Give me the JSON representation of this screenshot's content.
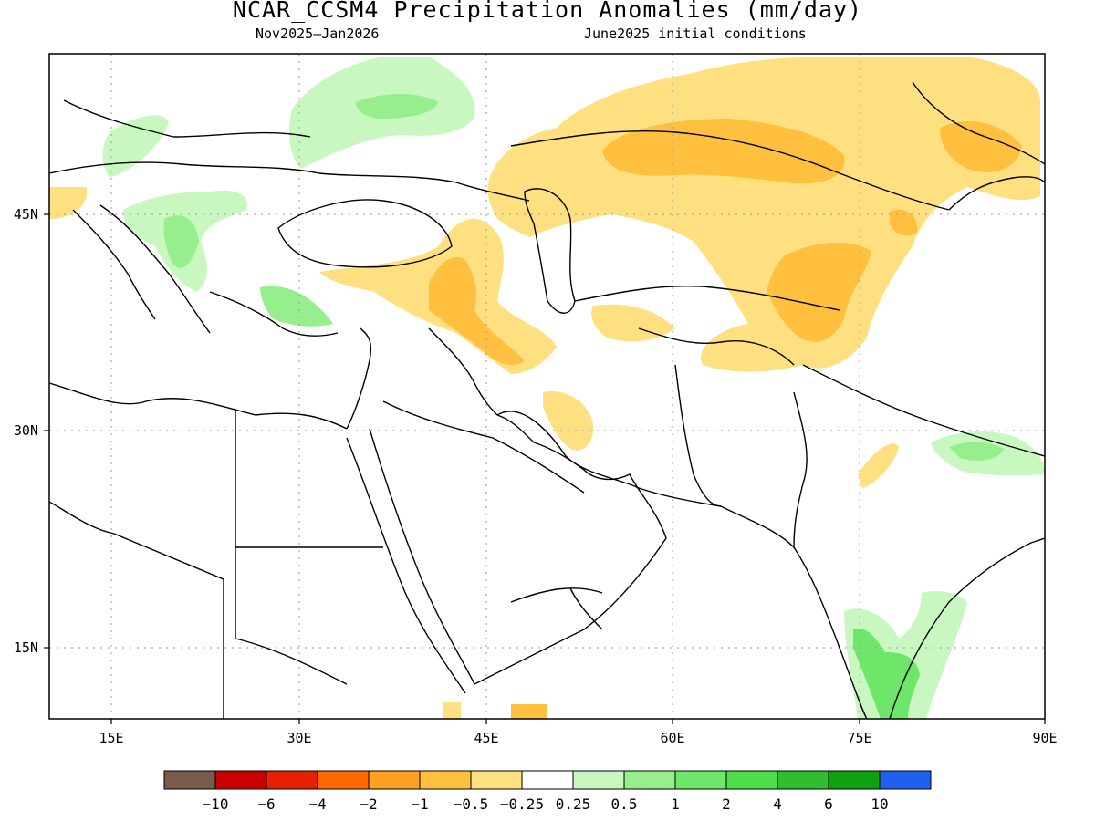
{
  "title": "NCAR_CCSM4 Precipitation Anomalies (mm/day)",
  "period": "Nov2025–Jan2026",
  "initial_conditions": "June2025 initial conditions",
  "axes": {
    "x_ticks": [
      "15E",
      "30E",
      "45E",
      "60E",
      "75E",
      "90E"
    ],
    "y_ticks": [
      "45N",
      "30N",
      "15N"
    ]
  },
  "colorbar": {
    "colors": [
      "#7a5a4a",
      "#c80000",
      "#e62000",
      "#ff6a00",
      "#ffa020",
      "#ffc040",
      "#ffe080",
      "#ffffff",
      "#c8f8c0",
      "#96ee8c",
      "#6ee66a",
      "#4ede4a",
      "#30be30",
      "#10a010",
      "#2060f0"
    ],
    "labels": [
      "−10",
      "−6",
      "−4",
      "−2",
      "−1",
      "−0.5",
      "−0.25",
      "0.25",
      "0.5",
      "1",
      "2",
      "4",
      "6",
      "10"
    ]
  },
  "map_data": {
    "lon_range": [
      10,
      90
    ],
    "lat_range": [
      9,
      56
    ],
    "anomaly_regions": [
      {
        "name": "central-asia-dry",
        "value": -0.5,
        "color": "#ffe080"
      },
      {
        "name": "kazakhstan-dry-core",
        "value": -1,
        "color": "#ffc040"
      },
      {
        "name": "caucasus-iran-dry",
        "value": -1,
        "color": "#ffc040"
      },
      {
        "name": "tien-shan-dry",
        "value": -1,
        "color": "#ffc040"
      },
      {
        "name": "ukraine-wet",
        "value": 0.5,
        "color": "#96ee8c"
      },
      {
        "name": "balkans-wet",
        "value": 0.5,
        "color": "#96ee8c"
      },
      {
        "name": "nepal-wet",
        "value": 0.5,
        "color": "#96ee8c"
      },
      {
        "name": "south-india-wet",
        "value": 1,
        "color": "#6ee66a"
      }
    ]
  }
}
